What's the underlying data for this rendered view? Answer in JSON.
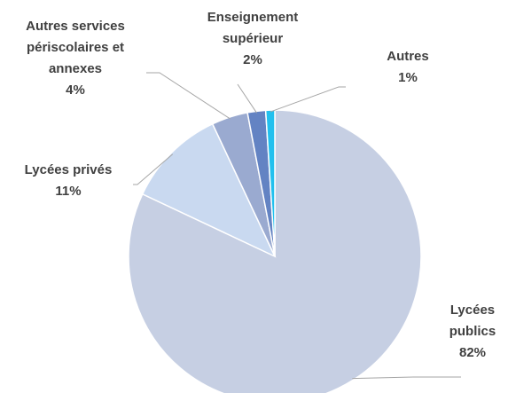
{
  "chart_data": {
    "type": "pie",
    "categories": [
      "Lycées publics",
      "Lycées privés",
      "Autres services périscolaires et annexes",
      "Enseignement supérieur",
      "Autres"
    ],
    "values": [
      82,
      11,
      4,
      2,
      1
    ],
    "value_labels": [
      "82%",
      "11%",
      "4%",
      "2%",
      "1%"
    ],
    "colors": [
      "#c6cfe3",
      "#c9d9f0",
      "#9aaad0",
      "#6383c3",
      "#22c0ee"
    ]
  }
}
